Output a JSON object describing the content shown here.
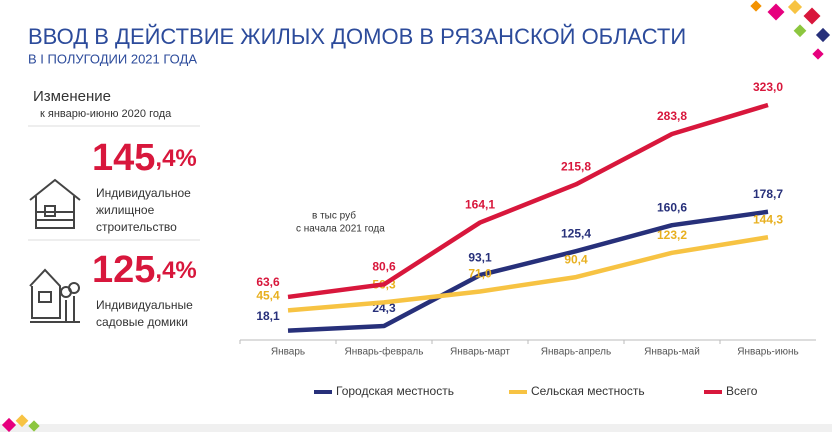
{
  "header": {
    "title": "ВВОД В ДЕЙСТВИЕ ЖИЛЫХ ДОМОВ В РЯЗАНСКОЙ ОБЛАСТИ",
    "subtitle": "В I ПОЛУГОДИИ 2021 ГОДА"
  },
  "summary": {
    "heading": "Изменение",
    "subheading": "к январю-июню 2020 года",
    "items": [
      {
        "integer": "145",
        "fraction": ",4%",
        "label_lines": [
          "Индивидуальное",
          "жилищное",
          "строительство"
        ]
      },
      {
        "integer": "125",
        "fraction": ",4%",
        "label_lines": [
          "Индивидуальные",
          "садовые домики"
        ]
      }
    ]
  },
  "chart_data": {
    "type": "line",
    "note_lines": [
      "в тыс руб",
      "с начала  2021 года"
    ],
    "categories": [
      "Январь",
      "Январь-февраль",
      "Январь-март",
      "Январь-апрель",
      "Январь-май",
      "Январь-июнь"
    ],
    "series": [
      {
        "name": "Городская местность",
        "color": "#27307a",
        "values": [
          18.1,
          24.3,
          93.1,
          125.4,
          160.6,
          178.7
        ],
        "value_labels": [
          "18,1",
          "24,3",
          "93,1",
          "125,4",
          "160,6",
          "178,7"
        ]
      },
      {
        "name": "Сельская местность",
        "color": "#f7c343",
        "values": [
          45.4,
          56.3,
          71.0,
          90.4,
          123.2,
          144.3
        ],
        "value_labels": [
          "45,4",
          "56,3",
          "71,0",
          "90,4",
          "123,2",
          "144,3"
        ]
      },
      {
        "name": "Всего",
        "color": "#d8173c",
        "values": [
          63.6,
          80.6,
          164.1,
          215.8,
          283.8,
          323.0
        ],
        "value_labels": [
          "63,6",
          "80,6",
          "164,1",
          "215,8",
          "283,8",
          "323,0"
        ]
      }
    ]
  }
}
